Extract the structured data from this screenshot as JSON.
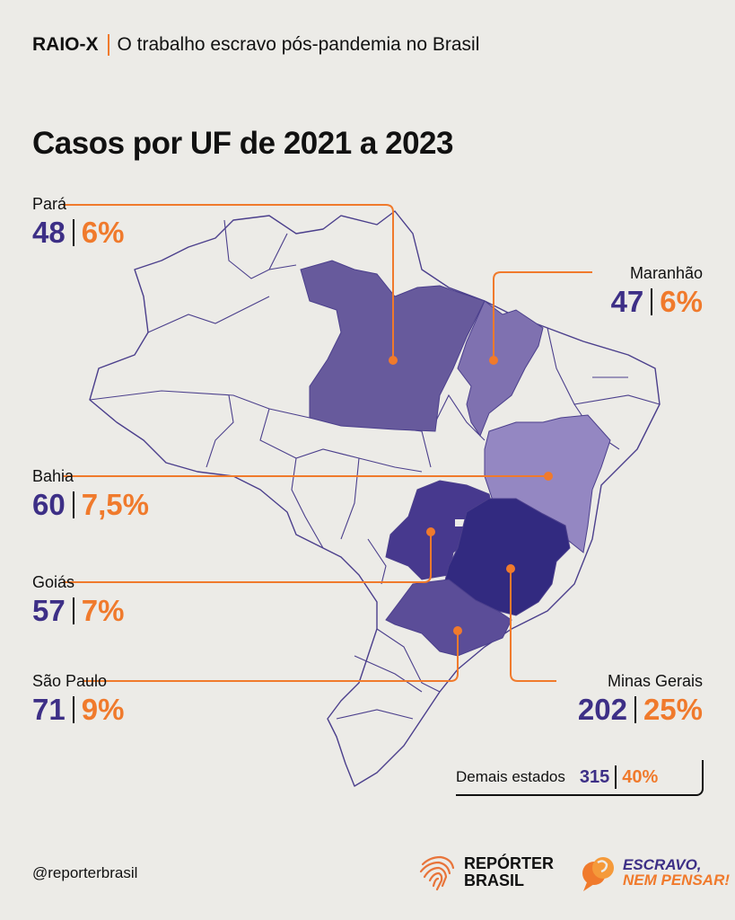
{
  "header": {
    "tag": "RAIO-X",
    "subtitle": "O trabalho escravo pós-pandemia no Brasil"
  },
  "title": "Casos por UF de 2021 a 2023",
  "colors": {
    "accent": "#f07a2c",
    "count": "#3d2f86",
    "background": "#ecebe7"
  },
  "states": [
    {
      "name": "Pará",
      "cases": "48",
      "share": "6%"
    },
    {
      "name": "Maranhão",
      "cases": "47",
      "share": "6%"
    },
    {
      "name": "Bahia",
      "cases": "60",
      "share": "7,5%"
    },
    {
      "name": "Goiás",
      "cases": "57",
      "share": "7%"
    },
    {
      "name": "São Paulo",
      "cases": "71",
      "share": "9%"
    },
    {
      "name": "Minas Gerais",
      "cases": "202",
      "share": "25%"
    }
  ],
  "others": {
    "name": "Demais estados",
    "cases": "315",
    "share": "40%"
  },
  "footer": {
    "handle": "@reporterbrasil",
    "logo_reporter_1": "REPÓRTER",
    "logo_reporter_2": "BRASIL",
    "logo_escravo_1": "ESCRAVO,",
    "logo_escravo_2": "NEM PENSAR!"
  }
}
